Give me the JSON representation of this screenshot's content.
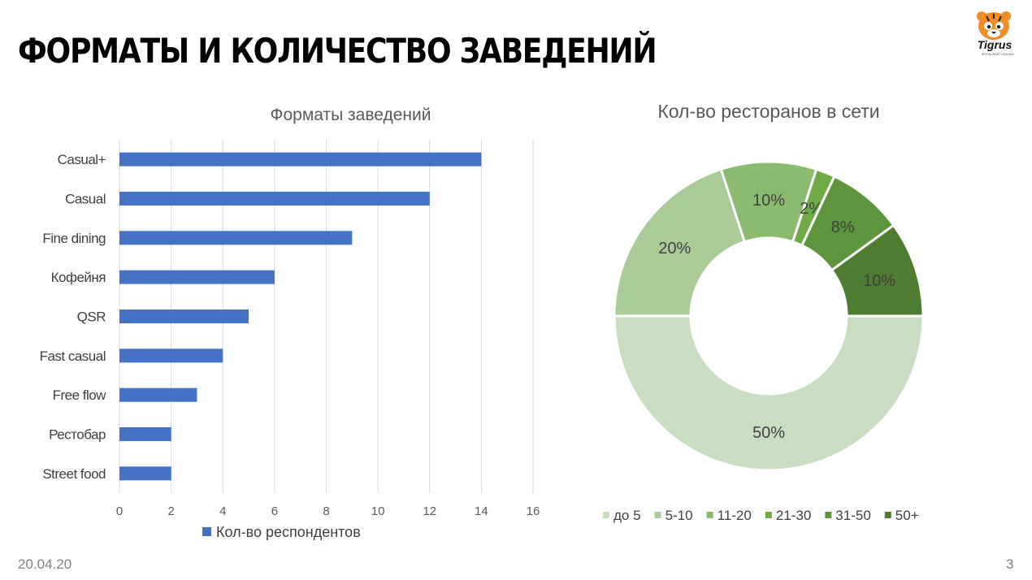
{
  "slide": {
    "title": "ФОРМАТЫ И КОЛИЧЕСТВО ЗАВЕДЕНИЙ",
    "date": "20.04.20",
    "page_number": "3",
    "logo_text": "Tigrus",
    "logo_subtext": "RESTAURANT HOLDING"
  },
  "chart_data": [
    {
      "type": "bar",
      "orientation": "horizontal",
      "title": "Форматы заведений",
      "categories": [
        "Casual+",
        "Casual",
        "Fine dining",
        "Кофейня",
        "QSR",
        "Fast casual",
        "Free flow",
        "Рестобар",
        "Street food"
      ],
      "series": [
        {
          "name": "Кол-во респондентов",
          "values": [
            14,
            12,
            9,
            6,
            5,
            4,
            3,
            2,
            2
          ]
        }
      ],
      "xlim": [
        0,
        16
      ],
      "xticks": [
        "0",
        "2",
        "4",
        "6",
        "8",
        "10",
        "12",
        "14",
        "16"
      ],
      "grid": "vertical",
      "legend": "bottom",
      "color": "#4472C4"
    },
    {
      "type": "pie",
      "style": "donut",
      "title": "Кол-во ресторанов в сети",
      "categories": [
        "до 5",
        "5-10",
        "11-20",
        "21-30",
        "31-50",
        "50+"
      ],
      "values": [
        50,
        20,
        10,
        2,
        8,
        10
      ],
      "labels": [
        "50%",
        "20%",
        "10%",
        "2%",
        "8%",
        "10%"
      ],
      "colors": [
        "#C9DEC1",
        "#A9CB98",
        "#8BBB6E",
        "#6EAA46",
        "#5E953C",
        "#4E7D31"
      ],
      "legend": "bottom"
    }
  ]
}
